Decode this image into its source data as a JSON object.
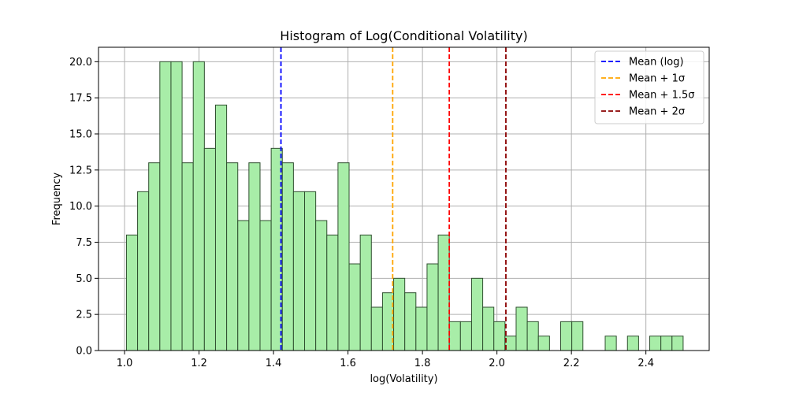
{
  "chart_data": {
    "type": "bar",
    "title": "Histogram of Log(Conditional Volatility)",
    "xlabel": "log(Volatility)",
    "ylabel": "Frequency",
    "xlim": [
      0.93,
      2.57
    ],
    "ylim": [
      0,
      21
    ],
    "xticks": [
      1.0,
      1.2,
      1.4,
      1.6,
      1.8,
      2.0,
      2.2,
      2.4
    ],
    "xtick_labels": [
      "1.0",
      "1.2",
      "1.4",
      "1.6",
      "1.8",
      "2.0",
      "2.2",
      "2.4"
    ],
    "yticks": [
      0,
      2.5,
      5,
      7.5,
      10,
      12.5,
      15,
      17.5,
      20
    ],
    "ytick_labels": [
      "0.0",
      "2.5",
      "5.0",
      "7.5",
      "10.0",
      "12.5",
      "15.0",
      "17.5",
      "20.0"
    ],
    "grid": true,
    "bin_start": 1.005,
    "bin_width": 0.0299,
    "counts": [
      8,
      11,
      13,
      20,
      20,
      13,
      20,
      14,
      17,
      13,
      9,
      13,
      9,
      14,
      13,
      11,
      11,
      9,
      8,
      13,
      6,
      8,
      3,
      4,
      5,
      4,
      3,
      6,
      8,
      2,
      2,
      5,
      3,
      2,
      1,
      3,
      2,
      1,
      0,
      2,
      2,
      0,
      0,
      1,
      0,
      1,
      0,
      1,
      1,
      1
    ],
    "bar_color": "#a8eda8",
    "bar_edge_color": "#2f4f2f",
    "vlines": [
      {
        "name": "Mean (log)",
        "x": 1.42,
        "color": "#0000ff"
      },
      {
        "name": "Mean + 1σ",
        "x": 1.72,
        "color": "#ffa500"
      },
      {
        "name": "Mean + 1.5σ",
        "x": 1.872,
        "color": "#ff0000"
      },
      {
        "name": "Mean + 2σ",
        "x": 2.024,
        "color": "#8b0000"
      }
    ],
    "legend_position": "top-right"
  }
}
